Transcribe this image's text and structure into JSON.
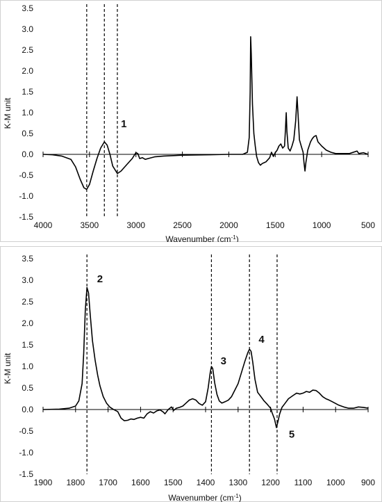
{
  "chart_data": [
    {
      "type": "line",
      "xlabel": "Wavenumber (cm",
      "xlabel_sup": "-1",
      "xlabel_end": ")",
      "ylabel": "K-M unit",
      "xlim": [
        4000,
        500
      ],
      "ylim": [
        -1.5,
        3.5
      ],
      "x_ticks": [
        4000,
        3500,
        3000,
        2500,
        2000,
        1500,
        1000,
        500
      ],
      "y_ticks": [
        3.5,
        3.0,
        2.5,
        2.0,
        1.5,
        1.0,
        0.5,
        0.0,
        -0.5,
        -1.0,
        -1.5
      ],
      "x_tick_labels": [
        "4000",
        "3500",
        "3000",
        "2500",
        "2000",
        "1500",
        "1000",
        "500"
      ],
      "y_tick_labels": [
        "3.5",
        "3.0",
        "2.5",
        "2.0",
        "1.5",
        "1.0",
        "0.5",
        "0.0",
        "-0.5",
        "-1.0",
        "-1.5"
      ],
      "grid": false,
      "reference_lines_x": [
        3530,
        3340,
        3200
      ],
      "annotations": [
        {
          "text": "1",
          "x": 3130,
          "y": 0.65
        }
      ],
      "series": [
        {
          "points": [
            [
              4000,
              0.0
            ],
            [
              3900,
              -0.01
            ],
            [
              3800,
              -0.04
            ],
            [
              3700,
              -0.12
            ],
            [
              3650,
              -0.3
            ],
            [
              3600,
              -0.6
            ],
            [
              3560,
              -0.8
            ],
            [
              3530,
              -0.84
            ],
            [
              3500,
              -0.72
            ],
            [
              3460,
              -0.4
            ],
            [
              3420,
              -0.1
            ],
            [
              3380,
              0.15
            ],
            [
              3340,
              0.3
            ],
            [
              3310,
              0.22
            ],
            [
              3280,
              0.0
            ],
            [
              3250,
              -0.28
            ],
            [
              3200,
              -0.46
            ],
            [
              3160,
              -0.4
            ],
            [
              3100,
              -0.25
            ],
            [
              3040,
              -0.1
            ],
            [
              3000,
              0.04
            ],
            [
              2980,
              0.02
            ],
            [
              2960,
              -0.1
            ],
            [
              2930,
              -0.08
            ],
            [
              2900,
              -0.12
            ],
            [
              2850,
              -0.09
            ],
            [
              2800,
              -0.06
            ],
            [
              2700,
              -0.04
            ],
            [
              2500,
              -0.02
            ],
            [
              2200,
              -0.01
            ],
            [
              2000,
              0.0
            ],
            [
              1850,
              0.0
            ],
            [
              1800,
              0.05
            ],
            [
              1780,
              0.4
            ],
            [
              1770,
              1.5
            ],
            [
              1765,
              2.82
            ],
            [
              1758,
              2.4
            ],
            [
              1745,
              1.2
            ],
            [
              1730,
              0.5
            ],
            [
              1715,
              0.2
            ],
            [
              1700,
              -0.05
            ],
            [
              1680,
              -0.2
            ],
            [
              1660,
              -0.26
            ],
            [
              1640,
              -0.22
            ],
            [
              1620,
              -0.2
            ],
            [
              1600,
              -0.18
            ],
            [
              1560,
              -0.08
            ],
            [
              1540,
              0.05
            ],
            [
              1520,
              -0.05
            ],
            [
              1500,
              0.04
            ],
            [
              1480,
              0.1
            ],
            [
              1460,
              0.2
            ],
            [
              1440,
              0.25
            ],
            [
              1420,
              0.15
            ],
            [
              1400,
              0.2
            ],
            [
              1390,
              0.6
            ],
            [
              1382,
              1.0
            ],
            [
              1374,
              0.55
            ],
            [
              1360,
              0.15
            ],
            [
              1340,
              0.08
            ],
            [
              1320,
              0.2
            ],
            [
              1300,
              0.35
            ],
            [
              1280,
              0.8
            ],
            [
              1265,
              1.38
            ],
            [
              1255,
              1.0
            ],
            [
              1240,
              0.35
            ],
            [
              1220,
              0.2
            ],
            [
              1200,
              0.05
            ],
            [
              1190,
              -0.2
            ],
            [
              1180,
              -0.4
            ],
            [
              1170,
              -0.2
            ],
            [
              1150,
              0.1
            ],
            [
              1120,
              0.3
            ],
            [
              1100,
              0.38
            ],
            [
              1080,
              0.43
            ],
            [
              1060,
              0.45
            ],
            [
              1040,
              0.3
            ],
            [
              1000,
              0.2
            ],
            [
              950,
              0.1
            ],
            [
              900,
              0.05
            ],
            [
              850,
              0.02
            ],
            [
              700,
              0.02
            ],
            [
              620,
              0.08
            ],
            [
              600,
              0.02
            ],
            [
              550,
              0.04
            ],
            [
              500,
              0.0
            ]
          ]
        }
      ]
    },
    {
      "type": "line",
      "xlabel": "Wavenumber (cm",
      "xlabel_sup": "-1",
      "xlabel_end": ")",
      "ylabel": "K-M unit",
      "xlim": [
        1900,
        900
      ],
      "ylim": [
        -1.5,
        3.5
      ],
      "x_ticks": [
        1900,
        1800,
        1700,
        1600,
        1500,
        1400,
        1300,
        1200,
        1100,
        1000,
        900
      ],
      "y_ticks": [
        3.5,
        3.0,
        2.5,
        2.0,
        1.5,
        1.0,
        0.5,
        0.0,
        -0.5,
        -1.0,
        -1.5
      ],
      "x_tick_labels": [
        "1900",
        "1800",
        "1700",
        "1600",
        "1500",
        "1400",
        "1300",
        "1200",
        "1100",
        "1000",
        "900"
      ],
      "y_tick_labels": [
        "3.5",
        "3.0",
        "2.5",
        "2.0",
        "1.5",
        "1.0",
        "0.5",
        "0.0",
        "-0.5",
        "-1.0",
        "-1.5"
      ],
      "grid": false,
      "reference_lines_x": [
        1765,
        1382,
        1265,
        1180
      ],
      "annotations": [
        {
          "text": "2",
          "x": 1725,
          "y": 2.95
        },
        {
          "text": "3",
          "x": 1345,
          "y": 1.05
        },
        {
          "text": "4",
          "x": 1228,
          "y": 1.55
        },
        {
          "text": "5",
          "x": 1135,
          "y": -0.65
        }
      ],
      "series": [
        {
          "points": [
            [
              1900,
              0.0
            ],
            [
              1850,
              0.01
            ],
            [
              1820,
              0.03
            ],
            [
              1800,
              0.08
            ],
            [
              1790,
              0.2
            ],
            [
              1780,
              0.6
            ],
            [
              1775,
              1.3
            ],
            [
              1770,
              2.3
            ],
            [
              1765,
              2.83
            ],
            [
              1760,
              2.7
            ],
            [
              1755,
              2.2
            ],
            [
              1748,
              1.6
            ],
            [
              1740,
              1.15
            ],
            [
              1732,
              0.8
            ],
            [
              1725,
              0.55
            ],
            [
              1715,
              0.3
            ],
            [
              1705,
              0.15
            ],
            [
              1695,
              0.06
            ],
            [
              1685,
              0.01
            ],
            [
              1670,
              -0.05
            ],
            [
              1660,
              -0.2
            ],
            [
              1650,
              -0.26
            ],
            [
              1640,
              -0.25
            ],
            [
              1630,
              -0.22
            ],
            [
              1620,
              -0.23
            ],
            [
              1610,
              -0.2
            ],
            [
              1600,
              -0.18
            ],
            [
              1590,
              -0.2
            ],
            [
              1580,
              -0.1
            ],
            [
              1570,
              -0.05
            ],
            [
              1560,
              -0.08
            ],
            [
              1550,
              -0.03
            ],
            [
              1540,
              -0.01
            ],
            [
              1530,
              -0.06
            ],
            [
              1525,
              -0.1
            ],
            [
              1515,
              0.0
            ],
            [
              1505,
              0.06
            ],
            [
              1498,
              -0.02
            ],
            [
              1490,
              0.03
            ],
            [
              1480,
              0.05
            ],
            [
              1470,
              0.08
            ],
            [
              1460,
              0.15
            ],
            [
              1450,
              0.22
            ],
            [
              1440,
              0.25
            ],
            [
              1430,
              0.22
            ],
            [
              1420,
              0.14
            ],
            [
              1410,
              0.1
            ],
            [
              1400,
              0.18
            ],
            [
              1392,
              0.5
            ],
            [
              1386,
              0.85
            ],
            [
              1382,
              1.0
            ],
            [
              1378,
              0.95
            ],
            [
              1372,
              0.62
            ],
            [
              1365,
              0.35
            ],
            [
              1358,
              0.2
            ],
            [
              1350,
              0.15
            ],
            [
              1340,
              0.18
            ],
            [
              1330,
              0.22
            ],
            [
              1320,
              0.3
            ],
            [
              1310,
              0.45
            ],
            [
              1300,
              0.6
            ],
            [
              1290,
              0.85
            ],
            [
              1280,
              1.1
            ],
            [
              1270,
              1.32
            ],
            [
              1265,
              1.4
            ],
            [
              1260,
              1.35
            ],
            [
              1255,
              1.1
            ],
            [
              1248,
              0.7
            ],
            [
              1240,
              0.4
            ],
            [
              1230,
              0.3
            ],
            [
              1220,
              0.2
            ],
            [
              1210,
              0.12
            ],
            [
              1200,
              0.03
            ],
            [
              1195,
              -0.08
            ],
            [
              1188,
              -0.22
            ],
            [
              1182,
              -0.42
            ],
            [
              1178,
              -0.3
            ],
            [
              1172,
              -0.1
            ],
            [
              1165,
              0.05
            ],
            [
              1155,
              0.15
            ],
            [
              1145,
              0.25
            ],
            [
              1130,
              0.33
            ],
            [
              1120,
              0.38
            ],
            [
              1110,
              0.36
            ],
            [
              1100,
              0.38
            ],
            [
              1090,
              0.42
            ],
            [
              1080,
              0.4
            ],
            [
              1070,
              0.45
            ],
            [
              1060,
              0.44
            ],
            [
              1050,
              0.38
            ],
            [
              1040,
              0.3
            ],
            [
              1030,
              0.25
            ],
            [
              1020,
              0.22
            ],
            [
              1010,
              0.18
            ],
            [
              1000,
              0.14
            ],
            [
              990,
              0.1
            ],
            [
              975,
              0.06
            ],
            [
              960,
              0.03
            ],
            [
              945,
              0.03
            ],
            [
              930,
              0.06
            ],
            [
              915,
              0.05
            ],
            [
              900,
              0.03
            ]
          ]
        }
      ]
    }
  ]
}
